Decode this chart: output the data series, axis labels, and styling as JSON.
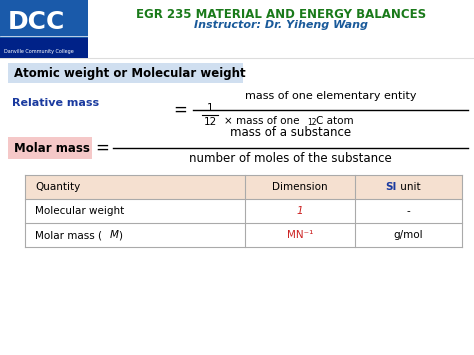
{
  "bg_color": "#ffffff",
  "header_title": "EGR 235 MATERIAL AND ENERGY BALANCES",
  "header_subtitle": "Instructor: Dr. Yiheng Wang",
  "header_title_color": "#1a7a1a",
  "header_subtitle_color": "#1a5a9a",
  "section1_title": "Atomic weight or Molecular weight",
  "section1_bg": "#d0dff0",
  "relative_mass_label": "Relative mass",
  "relative_mass_color": "#1a3a9f",
  "formula_numerator": "mass of one elementary entity",
  "molar_mass_label": "Molar mass",
  "molar_mass_bg": "#f5c8c8",
  "molar_mass_num": "mass of a substance",
  "molar_mass_denom": "number of moles of the substance",
  "table_header_bg": "#f5e0d0",
  "table_cols": [
    "Quantity",
    "Dimension",
    "SI unit"
  ],
  "table_row1": [
    "Molecular weight",
    "1",
    "-"
  ],
  "table_row2_col1": "Molar mass (",
  "table_row2_col2": "MN⁻¹",
  "table_row2_col3": "g/mol",
  "row1_dim_color": "#cc2222",
  "row2_dim_color": "#cc2222",
  "si_bold_color": "#1a3a9f",
  "dcc_bg_top": "#1a5aaa",
  "dcc_bg_bot": "#002288",
  "dcc_text": "DCC",
  "logo_sub": "Danville Community College",
  "line_color": "#aaaaaa",
  "frac_line_color": "#000000"
}
